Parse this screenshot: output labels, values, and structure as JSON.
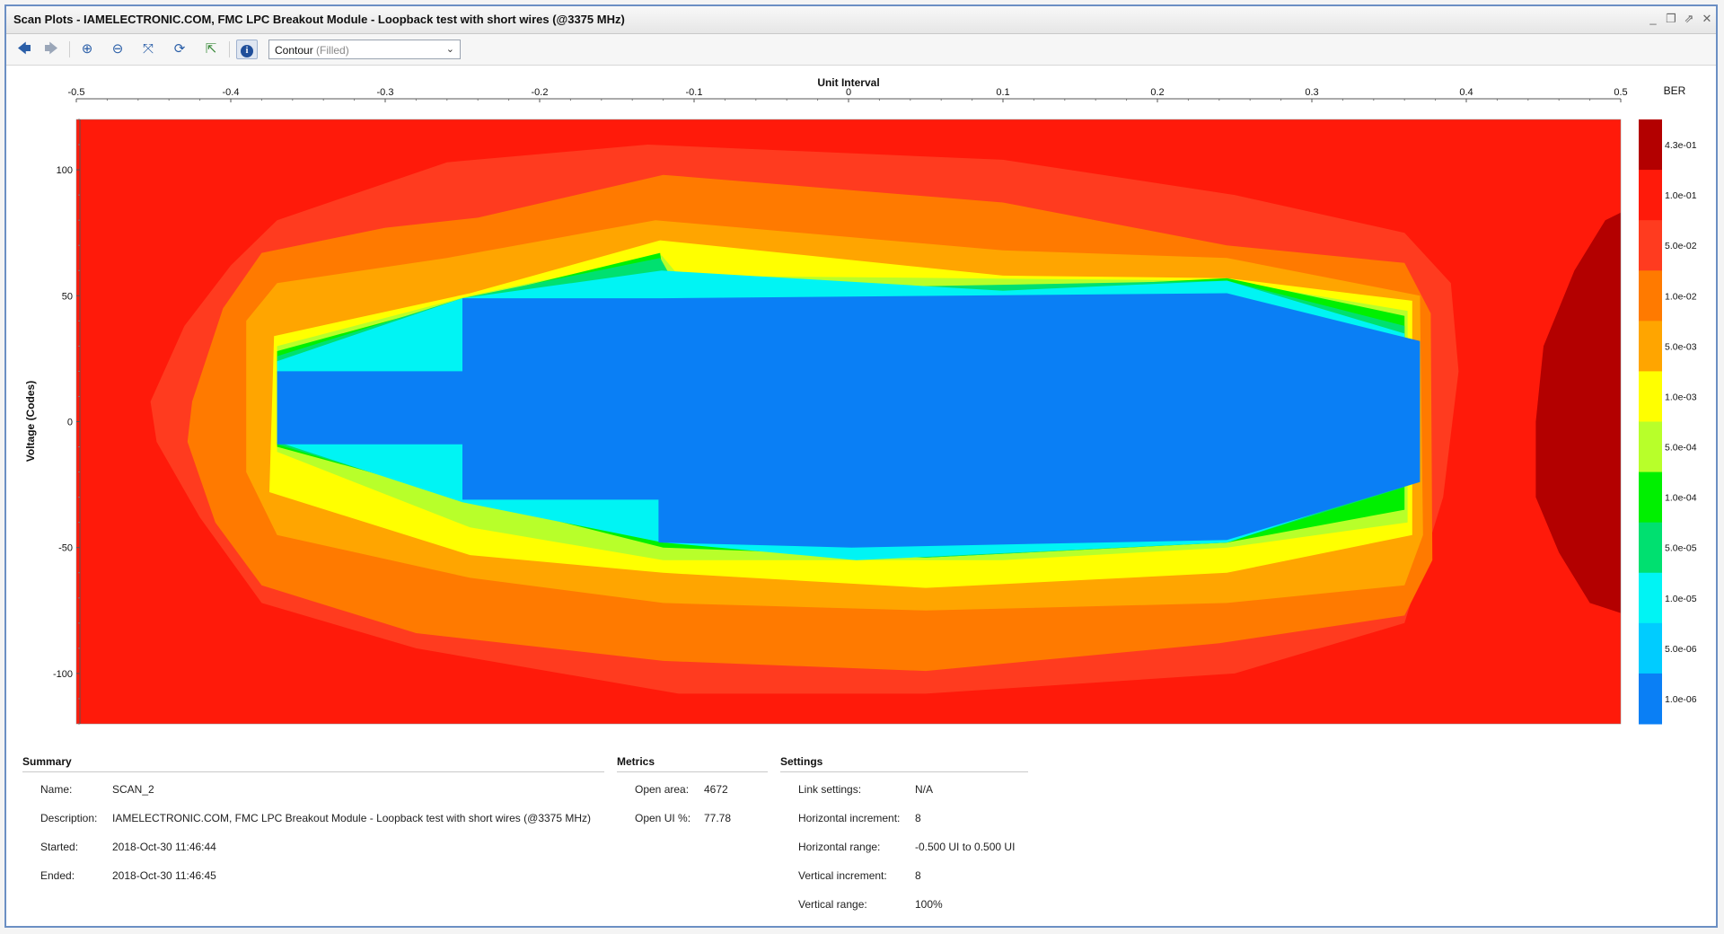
{
  "window": {
    "title": "Scan Plots - IAMELECTRONIC.COM, FMC LPC Breakout Module - Loopback test with short wires (@3375 MHz)",
    "controls": [
      "minimize-icon",
      "restore-icon",
      "maximize-icon",
      "close-icon"
    ]
  },
  "toolbar": {
    "buttons": [
      {
        "name": "back-button",
        "icon": "arrow-left-icon",
        "glyph": "🡄"
      },
      {
        "name": "forward-button",
        "icon": "arrow-right-icon",
        "glyph": "🡆"
      },
      {
        "name": "zoom-in-button",
        "icon": "zoom-in-icon",
        "glyph": "⊕"
      },
      {
        "name": "zoom-out-button",
        "icon": "zoom-out-icon",
        "glyph": "⊖"
      },
      {
        "name": "fit-button",
        "icon": "fit-icon",
        "glyph": "⤧"
      },
      {
        "name": "refresh-button",
        "icon": "refresh-icon",
        "glyph": "⟳"
      },
      {
        "name": "export-button",
        "icon": "export-icon",
        "glyph": "⇱"
      },
      {
        "name": "info-button",
        "icon": "info-icon",
        "glyph": "i"
      }
    ],
    "plot_type": {
      "value": "Contour",
      "suffix": "(Filled)"
    }
  },
  "chart_data": {
    "type": "heatmap",
    "subtype": "filled-contour",
    "xlabel": "Unit Interval",
    "ylabel": "Voltage (Codes)",
    "xlim": [
      -0.5,
      0.5
    ],
    "ylim": [
      -120,
      120
    ],
    "x_ticks": [
      "-0.5",
      "-0.4",
      "-0.3",
      "-0.2",
      "-0.1",
      "0",
      "0.1",
      "0.2",
      "0.3",
      "0.4",
      "0.5"
    ],
    "y_ticks": [
      "100",
      "50",
      "0",
      "-50",
      "-100"
    ],
    "colorbar": {
      "title": "BER",
      "labels": [
        "4.3e-01",
        "1.0e-01",
        "5.0e-02",
        "1.0e-02",
        "5.0e-03",
        "1.0e-03",
        "5.0e-04",
        "1.0e-04",
        "5.0e-05",
        "1.0e-05",
        "5.0e-06",
        "1.0e-06"
      ],
      "colors": [
        "#b30000",
        "#ff1a0a",
        "#ff3b1f",
        "#ff7a00",
        "#ffa500",
        "#ffff00",
        "#b8ff2a",
        "#00f000",
        "#00e070",
        "#00f4f4",
        "#00ccff",
        "#0a7ff5"
      ]
    },
    "contours": [
      {
        "level": "1.0e-01",
        "color": "#ff1a0a",
        "points": [
          [
            -0.5,
            -120
          ],
          [
            0.5,
            -120
          ],
          [
            0.5,
            120
          ],
          [
            -0.5,
            120
          ]
        ]
      },
      {
        "level": "4.3e-01",
        "color": "#b30000",
        "points": [
          [
            0.5,
            83
          ],
          [
            0.5,
            -76
          ],
          [
            0.48,
            -72
          ],
          [
            0.46,
            -52
          ],
          [
            0.445,
            -30
          ],
          [
            0.445,
            0
          ],
          [
            0.45,
            30
          ],
          [
            0.47,
            60
          ],
          [
            0.49,
            80
          ]
        ]
      },
      {
        "level": "5.0e-02",
        "color": "#ff3b1f",
        "points": [
          [
            -0.13,
            110
          ],
          [
            0.1,
            104
          ],
          [
            0.25,
            90
          ],
          [
            0.36,
            75
          ],
          [
            0.39,
            55
          ],
          [
            0.395,
            20
          ],
          [
            0.385,
            -30
          ],
          [
            0.36,
            -80
          ],
          [
            0.25,
            -100
          ],
          [
            0.05,
            -108
          ],
          [
            -0.11,
            -108
          ],
          [
            -0.28,
            -90
          ],
          [
            -0.38,
            -72
          ],
          [
            -0.42,
            -38
          ],
          [
            -0.448,
            -8
          ],
          [
            -0.452,
            8
          ],
          [
            -0.43,
            38
          ],
          [
            -0.4,
            62
          ],
          [
            -0.37,
            80
          ],
          [
            -0.26,
            103
          ]
        ]
      },
      {
        "level": "1.0e-02",
        "color": "#ff7a00",
        "points": [
          [
            -0.12,
            98
          ],
          [
            0.1,
            87
          ],
          [
            0.245,
            70
          ],
          [
            0.36,
            63
          ],
          [
            0.377,
            43
          ],
          [
            0.378,
            -55
          ],
          [
            0.36,
            -77
          ],
          [
            0.24,
            -88
          ],
          [
            0.05,
            -99
          ],
          [
            -0.12,
            -95
          ],
          [
            -0.28,
            -84
          ],
          [
            -0.38,
            -65
          ],
          [
            -0.41,
            -40
          ],
          [
            -0.428,
            -8
          ],
          [
            -0.425,
            8
          ],
          [
            -0.405,
            45
          ],
          [
            -0.38,
            67
          ],
          [
            -0.3,
            77
          ],
          [
            -0.24,
            81
          ]
        ]
      },
      {
        "level": "5.0e-03",
        "color": "#ffa500",
        "points": [
          [
            -0.125,
            80
          ],
          [
            0.1,
            68
          ],
          [
            0.245,
            65
          ],
          [
            0.37,
            50
          ],
          [
            0.372,
            -45
          ],
          [
            0.36,
            -65
          ],
          [
            0.245,
            -72
          ],
          [
            0.05,
            -75
          ],
          [
            -0.12,
            -72
          ],
          [
            -0.245,
            -62
          ],
          [
            -0.37,
            -45
          ],
          [
            -0.39,
            -20
          ],
          [
            -0.39,
            40
          ],
          [
            -0.37,
            55
          ],
          [
            -0.26,
            65
          ]
        ]
      },
      {
        "level": "1.0e-03",
        "color": "#ffff00",
        "points": [
          [
            -0.122,
            72
          ],
          [
            0.1,
            58
          ],
          [
            0.245,
            57
          ],
          [
            0.365,
            48
          ],
          [
            0.365,
            -45
          ],
          [
            0.245,
            -60
          ],
          [
            0.05,
            -66
          ],
          [
            -0.12,
            -60
          ],
          [
            -0.245,
            -53
          ],
          [
            -0.375,
            -28
          ],
          [
            -0.372,
            34
          ],
          [
            -0.245,
            51
          ]
        ]
      },
      {
        "level": "5.0e-04",
        "color": "#b8ff2a",
        "points": [
          [
            -0.121,
            66
          ],
          [
            -0.11,
            58
          ],
          [
            0.245,
            56
          ],
          [
            0.362,
            44
          ],
          [
            0.362,
            -40
          ],
          [
            0.245,
            -50
          ],
          [
            0.1,
            -55
          ],
          [
            -0.12,
            -55
          ],
          [
            -0.245,
            -42
          ],
          [
            -0.37,
            -12
          ],
          [
            -0.37,
            30
          ],
          [
            -0.245,
            50
          ]
        ]
      },
      {
        "level": "1.0e-04",
        "color": "#00f000",
        "points": [
          [
            -0.122,
            67
          ],
          [
            -0.12,
            58
          ],
          [
            0.03,
            50
          ],
          [
            0.245,
            57
          ],
          [
            0.36,
            42
          ],
          [
            0.36,
            -35
          ],
          [
            0.245,
            -48
          ],
          [
            0.05,
            -54
          ],
          [
            -0.12,
            -50
          ],
          [
            -0.25,
            -30
          ],
          [
            -0.37,
            -10
          ],
          [
            -0.37,
            28
          ],
          [
            -0.25,
            48
          ]
        ]
      },
      {
        "level": "5.0e-05",
        "color": "#00e070",
        "points": [
          [
            -0.122,
            65
          ],
          [
            -0.11,
            52
          ],
          [
            0.245,
            56
          ],
          [
            0.36,
            38
          ],
          [
            0.36,
            -26
          ],
          [
            0.245,
            -48
          ],
          [
            0.05,
            -54
          ],
          [
            -0.12,
            -48
          ],
          [
            -0.25,
            -31
          ],
          [
            -0.37,
            -9
          ],
          [
            -0.37,
            26
          ],
          [
            -0.25,
            49
          ]
        ]
      },
      {
        "level": "1.0e-05",
        "color": "#00f4f4",
        "points": [
          [
            -0.121,
            60
          ],
          [
            0.1,
            52
          ],
          [
            0.245,
            56
          ],
          [
            0.36,
            35
          ],
          [
            0.36,
            -25
          ],
          [
            0.245,
            -48
          ],
          [
            0.005,
            -55
          ],
          [
            -0.12,
            -48
          ],
          [
            -0.25,
            -32
          ],
          [
            -0.37,
            -8
          ],
          [
            -0.37,
            24
          ],
          [
            -0.25,
            49
          ]
        ]
      },
      {
        "level": "1.0e-06",
        "color": "#0a7ff5",
        "points": [
          [
            -0.25,
            49
          ],
          [
            -0.121,
            49
          ],
          [
            0.245,
            51
          ],
          [
            0.37,
            32
          ],
          [
            0.37,
            -24
          ],
          [
            0.245,
            -47
          ],
          [
            0.002,
            -50
          ],
          [
            -0.123,
            -48
          ],
          [
            -0.123,
            -31
          ],
          [
            -0.25,
            -31
          ],
          [
            -0.25,
            -9
          ],
          [
            -0.37,
            -9
          ],
          [
            -0.37,
            20
          ],
          [
            -0.25,
            20
          ]
        ]
      }
    ]
  },
  "summary": {
    "title": "Summary",
    "rows": [
      {
        "key": "Name:",
        "value": "SCAN_2"
      },
      {
        "key": "Description:",
        "value": "IAMELECTRONIC.COM, FMC LPC Breakout Module - Loopback test with short wires (@3375 MHz)"
      },
      {
        "key": "Started:",
        "value": "2018-Oct-30 11:46:44"
      },
      {
        "key": "Ended:",
        "value": "2018-Oct-30 11:46:45"
      }
    ]
  },
  "metrics": {
    "title": "Metrics",
    "rows": [
      {
        "key": "Open area:",
        "value": "4672"
      },
      {
        "key": "Open UI %:",
        "value": "77.78"
      }
    ]
  },
  "settings": {
    "title": "Settings",
    "rows": [
      {
        "key": "Link settings:",
        "value": "N/A"
      },
      {
        "key": "Horizontal increment:",
        "value": "8"
      },
      {
        "key": "Horizontal range:",
        "value": "-0.500 UI to 0.500 UI"
      },
      {
        "key": "Vertical increment:",
        "value": "8"
      },
      {
        "key": "Vertical range:",
        "value": "100%"
      }
    ]
  }
}
